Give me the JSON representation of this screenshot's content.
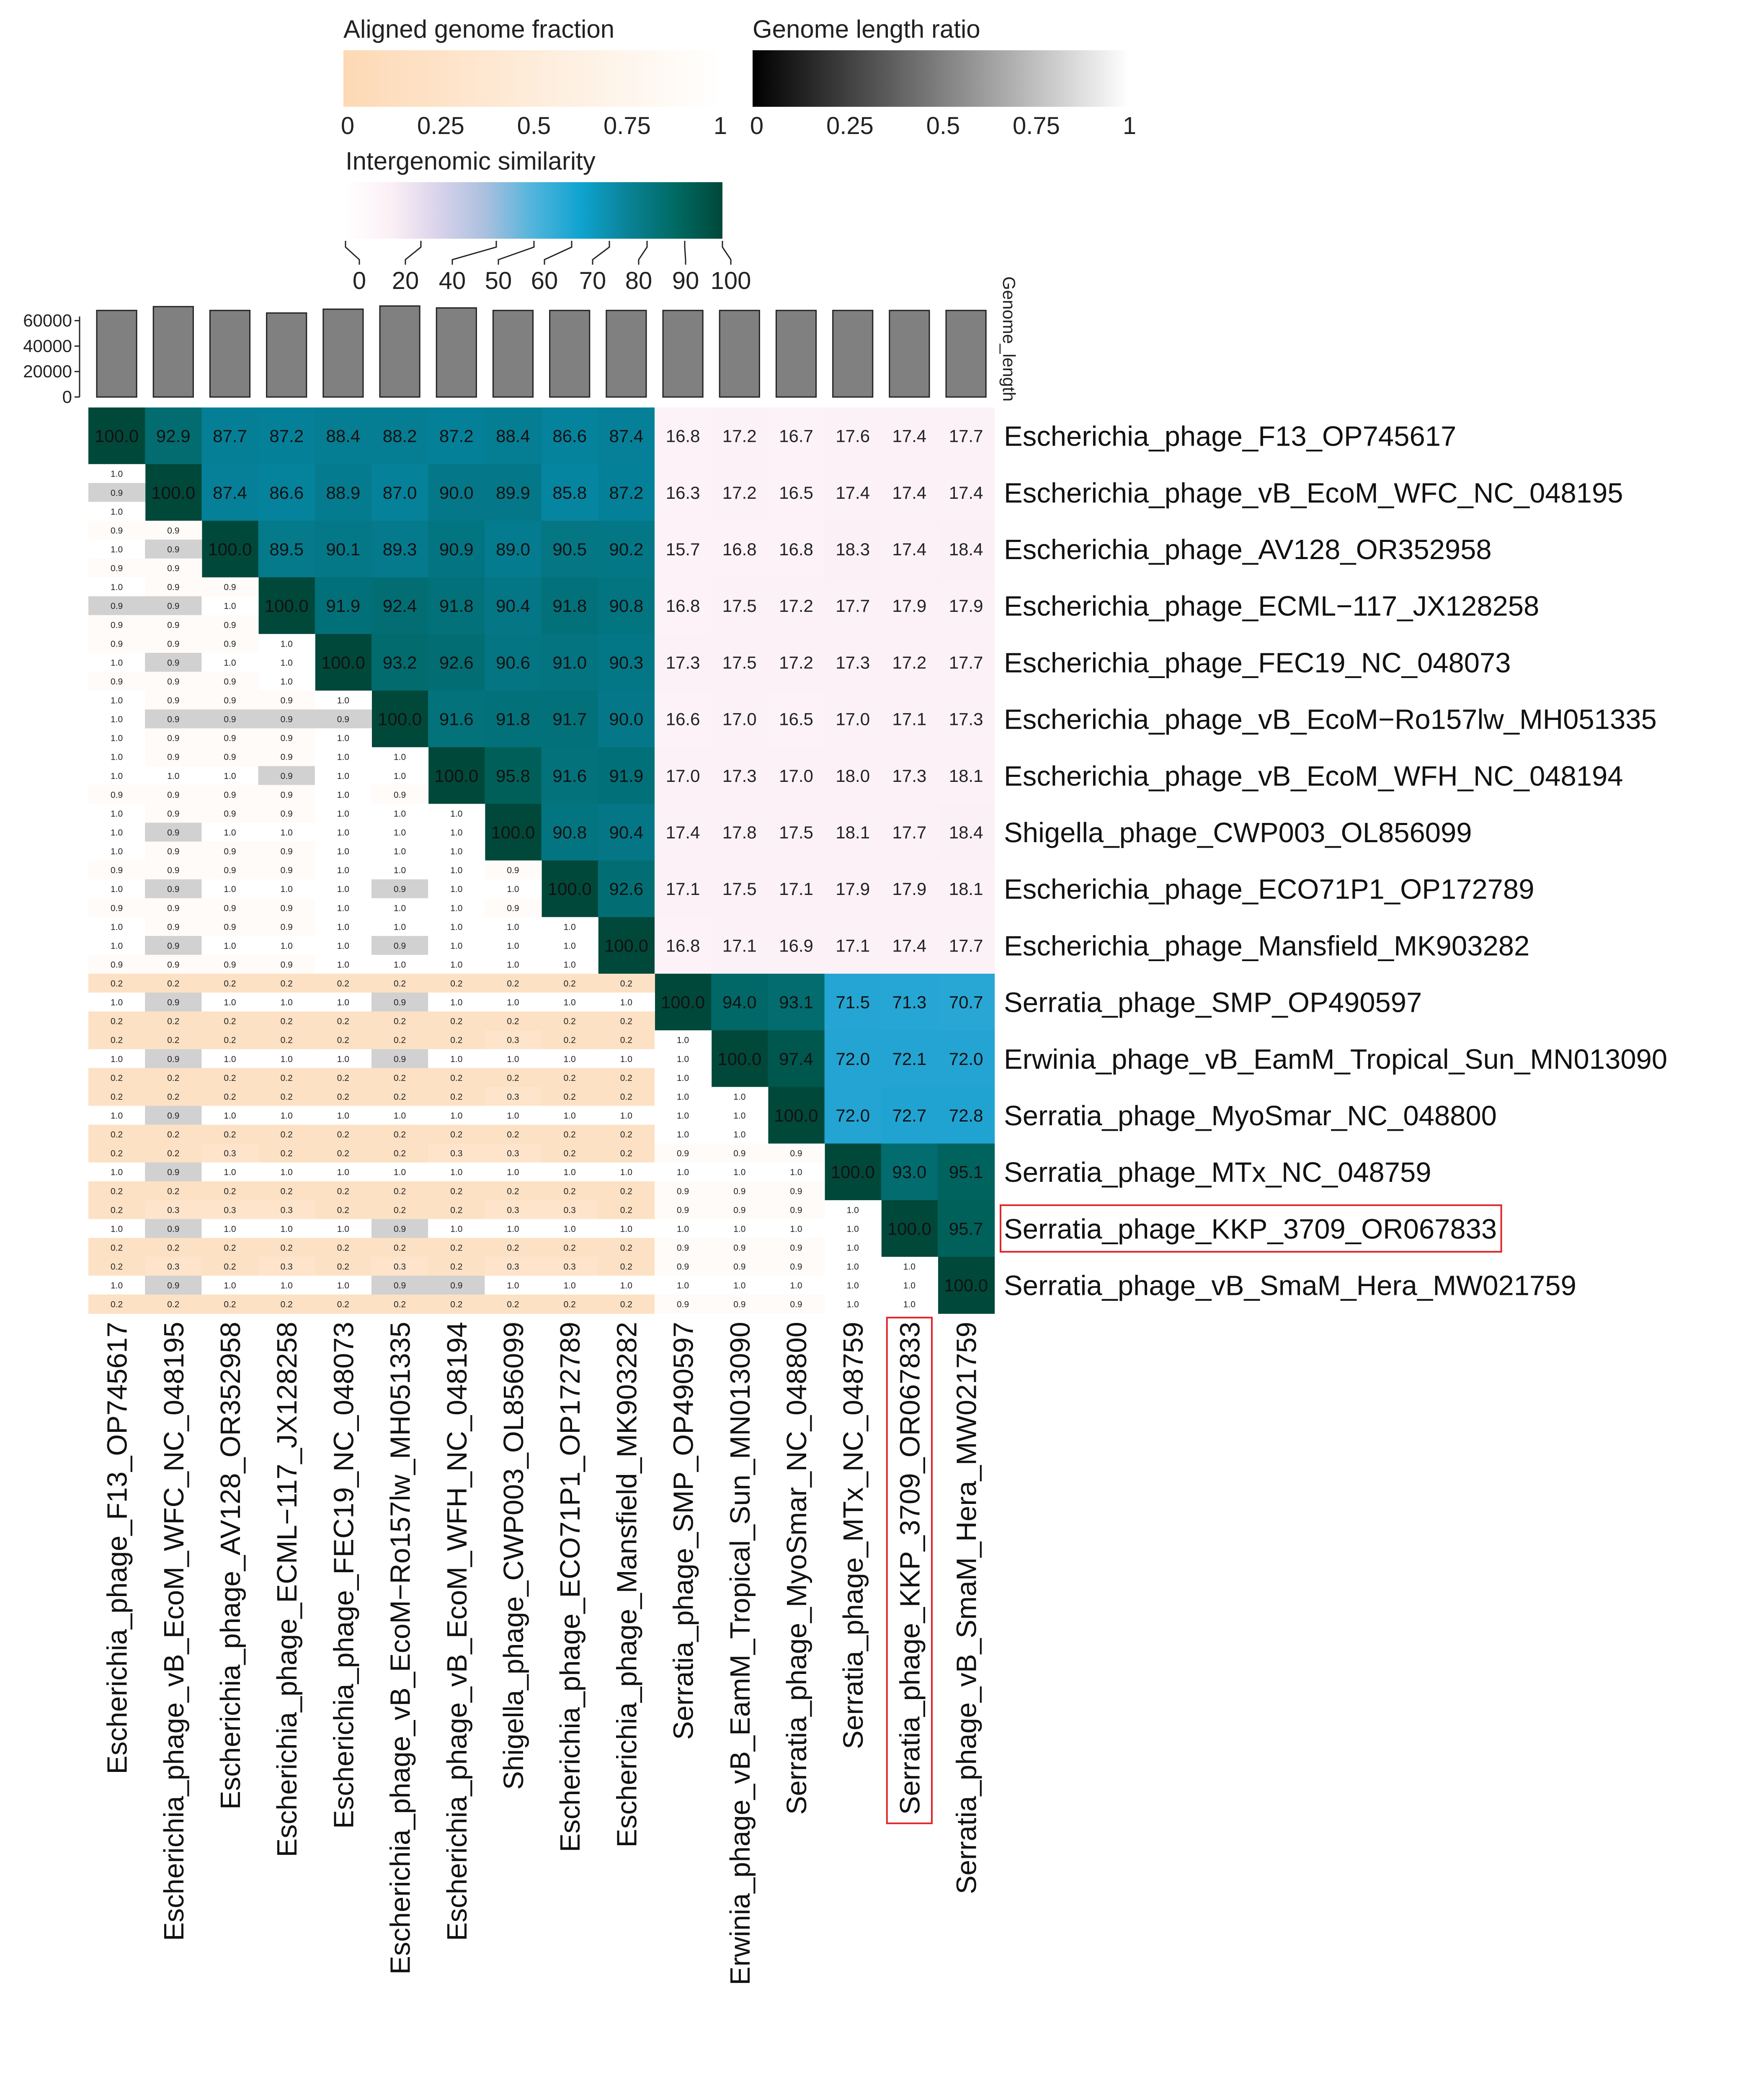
{
  "chart_data": {
    "type": "heatmap",
    "title": "",
    "legends": {
      "aligned_fraction": {
        "title": "Aligned genome fraction",
        "ticks": [
          "0",
          "0.25",
          "0.5",
          "0.75",
          "1"
        ],
        "colors": [
          "#fdd9b5",
          "#ffffff"
        ]
      },
      "length_ratio": {
        "title": "Genome length ratio",
        "ticks": [
          "0",
          "0.25",
          "0.5",
          "0.75",
          "1"
        ],
        "colors": [
          "#000000",
          "#ffffff"
        ]
      },
      "similarity": {
        "title": "Intergenomic similarity",
        "ticks": [
          "0",
          "20",
          "40",
          "50",
          "60",
          "70",
          "80",
          "90",
          "100"
        ],
        "colors": [
          "#ffffff",
          "#fbeff5",
          "#d8d2ea",
          "#a8bfde",
          "#4fb4dc",
          "#0ea3cf",
          "#0a8296",
          "#006a63",
          "#00483a"
        ]
      }
    },
    "genome_length": {
      "title": "Genome_length",
      "ticks": [
        "60000",
        "40000",
        "20000",
        "0"
      ],
      "tick_values": [
        60000,
        40000,
        20000,
        0
      ],
      "values": [
        68000,
        71000,
        68000,
        66000,
        69000,
        71500,
        70000,
        68000,
        68000,
        68000,
        68000,
        68000,
        68000,
        68000,
        68000,
        68000
      ],
      "bar_color": "#808080"
    },
    "phages": [
      "Escherichia_phage_F13_OP745617",
      "Escherichia_phage_vB_EcoM_WFC_NC_048195",
      "Escherichia_phage_AV128_OR352958",
      "Escherichia_phage_ECML−117_JX128258",
      "Escherichia_phage_FEC19_NC_048073",
      "Escherichia_phage_vB_EcoM−Ro157lw_MH051335",
      "Escherichia_phage_vB_EcoM_WFH_NC_048194",
      "Shigella_phage_CWP003_OL856099",
      "Escherichia_phage_ECO71P1_OP172789",
      "Escherichia_phage_Mansfield_MK903282",
      "Serratia_phage_SMP_OP490597",
      "Erwinia_phage_vB_EamM_Tropical_Sun_MN013090",
      "Serratia_phage_MyoSmar_NC_048800",
      "Serratia_phage_MTx_NC_048759",
      "Serratia_phage_KKP_3709_OR067833",
      "Serratia_phage_vB_SmaM_Hera_MW021759"
    ],
    "highlighted_index": 14,
    "similarity_upper": [
      [
        "100.0",
        "92.9",
        "87.7",
        "87.2",
        "88.4",
        "88.2",
        "87.2",
        "88.4",
        "86.6",
        "87.4",
        "16.8",
        "17.2",
        "16.7",
        "17.6",
        "17.4",
        "17.7"
      ],
      [
        "100.0",
        "87.4",
        "86.6",
        "88.9",
        "87.0",
        "90.0",
        "89.9",
        "85.8",
        "87.2",
        "16.3",
        "17.2",
        "16.5",
        "17.4",
        "17.4",
        "17.4"
      ],
      [
        "100.0",
        "89.5",
        "90.1",
        "89.3",
        "90.9",
        "89.0",
        "90.5",
        "90.2",
        "15.7",
        "16.8",
        "16.8",
        "18.3",
        "17.4",
        "18.4"
      ],
      [
        "100.0",
        "91.9",
        "92.4",
        "91.8",
        "90.4",
        "91.8",
        "90.8",
        "16.8",
        "17.5",
        "17.2",
        "17.7",
        "17.9",
        "17.9"
      ],
      [
        "100.0",
        "93.2",
        "92.6",
        "90.6",
        "91.0",
        "90.3",
        "17.3",
        "17.5",
        "17.2",
        "17.3",
        "17.2",
        "17.7"
      ],
      [
        "100.0",
        "91.6",
        "91.8",
        "91.7",
        "90.0",
        "16.6",
        "17.0",
        "16.5",
        "17.0",
        "17.1",
        "17.3"
      ],
      [
        "100.0",
        "95.8",
        "91.6",
        "91.9",
        "17.0",
        "17.3",
        "17.0",
        "18.0",
        "17.3",
        "18.1"
      ],
      [
        "100.0",
        "90.8",
        "90.4",
        "17.4",
        "17.8",
        "17.5",
        "18.1",
        "17.7",
        "18.4"
      ],
      [
        "100.0",
        "92.6",
        "17.1",
        "17.5",
        "17.1",
        "17.9",
        "17.9",
        "18.1"
      ],
      [
        "100.0",
        "16.8",
        "17.1",
        "16.9",
        "17.1",
        "17.4",
        "17.7"
      ],
      [
        "100.0",
        "94.0",
        "93.1",
        "71.5",
        "71.3",
        "70.7"
      ],
      [
        "100.0",
        "97.4",
        "72.0",
        "72.1",
        "72.0"
      ],
      [
        "100.0",
        "72.0",
        "72.7",
        "72.8"
      ],
      [
        "100.0",
        "93.0",
        "95.1"
      ],
      [
        "100.0",
        "95.7"
      ],
      [
        "100.0"
      ]
    ],
    "lower_triangle": [
      [],
      [
        [
          "1.0",
          "0.9",
          "1.0"
        ]
      ],
      [
        [
          "0.9",
          "1.0",
          "0.9"
        ],
        [
          "0.9",
          "0.9",
          "0.9"
        ]
      ],
      [
        [
          "1.0",
          "0.9",
          "0.9"
        ],
        [
          "0.9",
          "0.9",
          "0.9"
        ],
        [
          "0.9",
          "1.0",
          "0.9"
        ]
      ],
      [
        [
          "0.9",
          "1.0",
          "0.9"
        ],
        [
          "0.9",
          "0.9",
          "0.9"
        ],
        [
          "0.9",
          "1.0",
          "0.9"
        ],
        [
          "1.0",
          "1.0",
          "1.0"
        ]
      ],
      [
        [
          "1.0",
          "1.0",
          "1.0"
        ],
        [
          "0.9",
          "0.9",
          "0.9"
        ],
        [
          "0.9",
          "0.9",
          "0.9"
        ],
        [
          "0.9",
          "0.9",
          "0.9"
        ],
        [
          "1.0",
          "0.9",
          "1.0"
        ]
      ],
      [
        [
          "1.0",
          "1.0",
          "0.9"
        ],
        [
          "0.9",
          "1.0",
          "0.9"
        ],
        [
          "0.9",
          "1.0",
          "0.9"
        ],
        [
          "0.9",
          "0.9",
          "0.9"
        ],
        [
          "1.0",
          "1.0",
          "1.0"
        ],
        [
          "1.0",
          "1.0",
          "0.9"
        ]
      ],
      [
        [
          "1.0",
          "1.0",
          "1.0"
        ],
        [
          "0.9",
          "0.9",
          "0.9"
        ],
        [
          "0.9",
          "1.0",
          "0.9"
        ],
        [
          "0.9",
          "1.0",
          "0.9"
        ],
        [
          "1.0",
          "1.0",
          "1.0"
        ],
        [
          "1.0",
          "1.0",
          "1.0"
        ],
        [
          "1.0",
          "1.0",
          "1.0"
        ]
      ],
      [
        [
          "0.9",
          "1.0",
          "0.9"
        ],
        [
          "0.9",
          "0.9",
          "0.9"
        ],
        [
          "0.9",
          "1.0",
          "0.9"
        ],
        [
          "0.9",
          "1.0",
          "0.9"
        ],
        [
          "1.0",
          "1.0",
          "1.0"
        ],
        [
          "1.0",
          "0.9",
          "1.0"
        ],
        [
          "1.0",
          "1.0",
          "1.0"
        ],
        [
          "0.9",
          "1.0",
          "0.9"
        ]
      ],
      [
        [
          "1.0",
          "1.0",
          "0.9"
        ],
        [
          "0.9",
          "0.9",
          "0.9"
        ],
        [
          "0.9",
          "1.0",
          "0.9"
        ],
        [
          "0.9",
          "1.0",
          "0.9"
        ],
        [
          "1.0",
          "1.0",
          "1.0"
        ],
        [
          "1.0",
          "0.9",
          "1.0"
        ],
        [
          "1.0",
          "1.0",
          "1.0"
        ],
        [
          "1.0",
          "1.0",
          "1.0"
        ],
        [
          "1.0",
          "1.0",
          "1.0"
        ]
      ],
      [
        [
          "0.2",
          "1.0",
          "0.2"
        ],
        [
          "0.2",
          "0.9",
          "0.2"
        ],
        [
          "0.2",
          "1.0",
          "0.2"
        ],
        [
          "0.2",
          "1.0",
          "0.2"
        ],
        [
          "0.2",
          "1.0",
          "0.2"
        ],
        [
          "0.2",
          "0.9",
          "0.2"
        ],
        [
          "0.2",
          "1.0",
          "0.2"
        ],
        [
          "0.2",
          "1.0",
          "0.2"
        ],
        [
          "0.2",
          "1.0",
          "0.2"
        ],
        [
          "0.2",
          "1.0",
          "0.2"
        ]
      ],
      [
        [
          "0.2",
          "1.0",
          "0.2"
        ],
        [
          "0.2",
          "0.9",
          "0.2"
        ],
        [
          "0.2",
          "1.0",
          "0.2"
        ],
        [
          "0.2",
          "1.0",
          "0.2"
        ],
        [
          "0.2",
          "1.0",
          "0.2"
        ],
        [
          "0.2",
          "0.9",
          "0.2"
        ],
        [
          "0.2",
          "1.0",
          "0.2"
        ],
        [
          "0.3",
          "1.0",
          "0.2"
        ],
        [
          "0.2",
          "1.0",
          "0.2"
        ],
        [
          "0.2",
          "1.0",
          "0.2"
        ],
        [
          "1.0",
          "1.0",
          "1.0"
        ]
      ],
      [
        [
          "0.2",
          "1.0",
          "0.2"
        ],
        [
          "0.2",
          "0.9",
          "0.2"
        ],
        [
          "0.2",
          "1.0",
          "0.2"
        ],
        [
          "0.2",
          "1.0",
          "0.2"
        ],
        [
          "0.2",
          "1.0",
          "0.2"
        ],
        [
          "0.2",
          "1.0",
          "0.2"
        ],
        [
          "0.2",
          "1.0",
          "0.2"
        ],
        [
          "0.3",
          "1.0",
          "0.2"
        ],
        [
          "0.2",
          "1.0",
          "0.2"
        ],
        [
          "0.2",
          "1.0",
          "0.2"
        ],
        [
          "1.0",
          "1.0",
          "1.0"
        ],
        [
          "1.0",
          "1.0",
          "1.0"
        ]
      ],
      [
        [
          "0.2",
          "1.0",
          "0.2"
        ],
        [
          "0.2",
          "0.9",
          "0.2"
        ],
        [
          "0.3",
          "1.0",
          "0.2"
        ],
        [
          "0.2",
          "1.0",
          "0.2"
        ],
        [
          "0.2",
          "1.0",
          "0.2"
        ],
        [
          "0.2",
          "1.0",
          "0.2"
        ],
        [
          "0.3",
          "1.0",
          "0.2"
        ],
        [
          "0.3",
          "1.0",
          "0.2"
        ],
        [
          "0.2",
          "1.0",
          "0.2"
        ],
        [
          "0.2",
          "1.0",
          "0.2"
        ],
        [
          "0.9",
          "1.0",
          "0.9"
        ],
        [
          "0.9",
          "1.0",
          "0.9"
        ],
        [
          "0.9",
          "1.0",
          "0.9"
        ]
      ],
      [
        [
          "0.2",
          "1.0",
          "0.2"
        ],
        [
          "0.3",
          "0.9",
          "0.2"
        ],
        [
          "0.3",
          "1.0",
          "0.2"
        ],
        [
          "0.3",
          "1.0",
          "0.2"
        ],
        [
          "0.2",
          "1.0",
          "0.2"
        ],
        [
          "0.2",
          "0.9",
          "0.2"
        ],
        [
          "0.2",
          "1.0",
          "0.2"
        ],
        [
          "0.3",
          "1.0",
          "0.2"
        ],
        [
          "0.3",
          "1.0",
          "0.2"
        ],
        [
          "0.2",
          "1.0",
          "0.2"
        ],
        [
          "0.9",
          "1.0",
          "0.9"
        ],
        [
          "0.9",
          "1.0",
          "0.9"
        ],
        [
          "0.9",
          "1.0",
          "0.9"
        ],
        [
          "1.0",
          "1.0",
          "1.0"
        ]
      ],
      [
        [
          "0.2",
          "1.0",
          "0.2"
        ],
        [
          "0.3",
          "0.9",
          "0.2"
        ],
        [
          "0.2",
          "1.0",
          "0.2"
        ],
        [
          "0.3",
          "1.0",
          "0.2"
        ],
        [
          "0.2",
          "1.0",
          "0.2"
        ],
        [
          "0.3",
          "0.9",
          "0.2"
        ],
        [
          "0.2",
          "0.9",
          "0.2"
        ],
        [
          "0.3",
          "1.0",
          "0.2"
        ],
        [
          "0.3",
          "1.0",
          "0.2"
        ],
        [
          "0.2",
          "1.0",
          "0.2"
        ],
        [
          "0.9",
          "1.0",
          "0.9"
        ],
        [
          "0.9",
          "1.0",
          "0.9"
        ],
        [
          "0.9",
          "1.0",
          "0.9"
        ],
        [
          "1.0",
          "1.0",
          "1.0"
        ],
        [
          "1.0",
          "1.0",
          "1.0"
        ]
      ]
    ]
  }
}
